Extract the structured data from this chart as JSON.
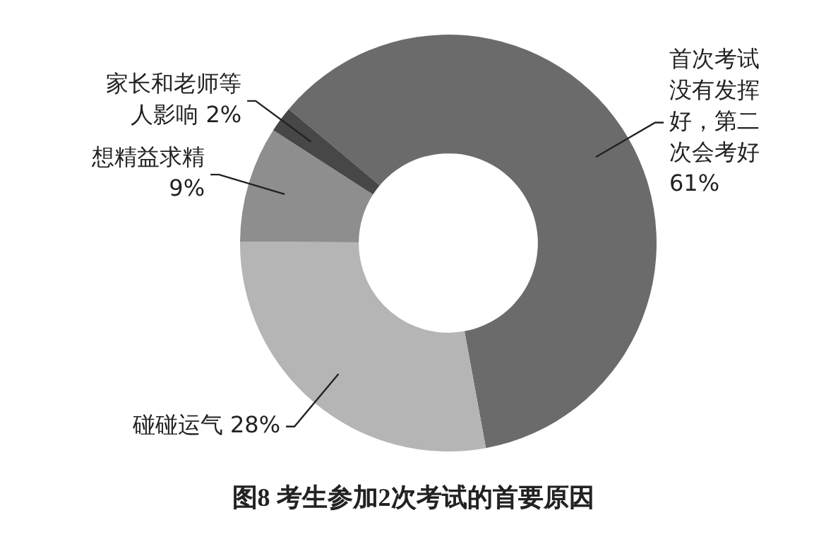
{
  "chart_data": {
    "type": "donut",
    "title": "图8 考生参加2次考试的首要原因",
    "categories": [
      "首次考试没有发挥好，第二次会考好",
      "碰碰运气",
      "想精益求精",
      "家长和老师等人影响"
    ],
    "values": [
      61,
      28,
      9,
      2
    ],
    "value_labels": [
      "61%",
      "28%",
      "9%",
      "2%"
    ],
    "colors": [
      "#6b6b6b",
      "#b5b5b5",
      "#8e8e8e",
      "#474747"
    ],
    "legend": false
  }
}
